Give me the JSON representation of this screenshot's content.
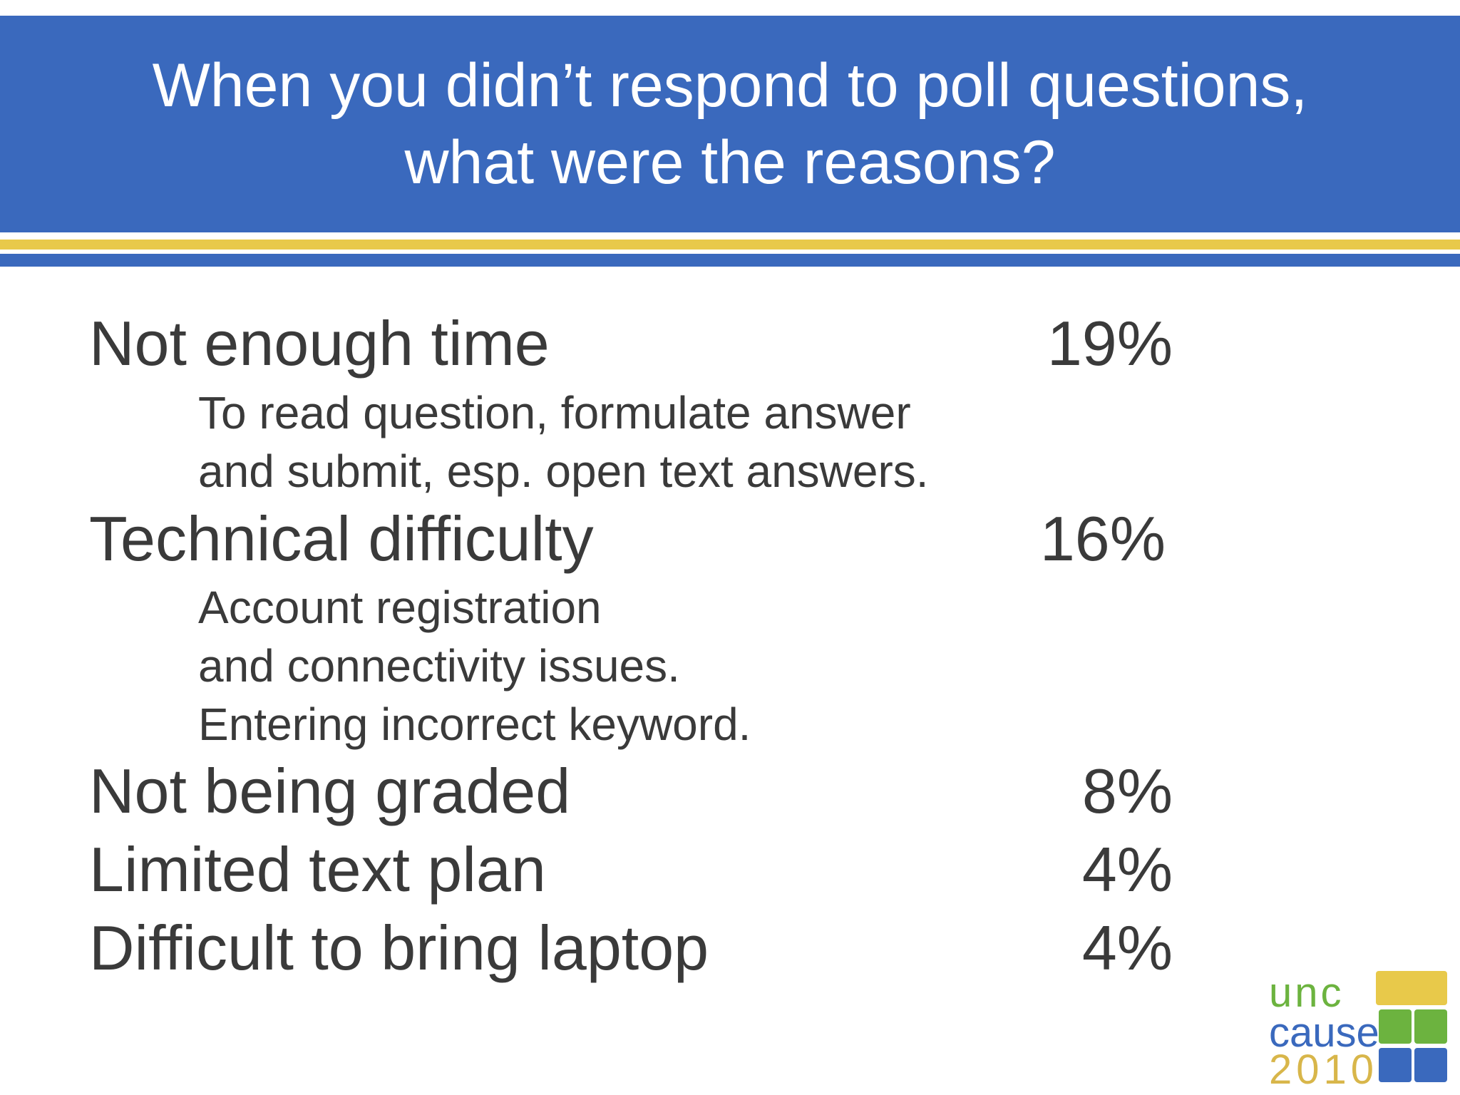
{
  "header": {
    "title_lines": [
      "When you didn’t respond to poll questions,",
      "what were the reasons?"
    ]
  },
  "reasons": [
    {
      "label": "Not enough time",
      "percent": "19%",
      "details": [
        "To read question, formulate answer",
        "and submit, esp. open text answers."
      ]
    },
    {
      "label": "Technical difficulty",
      "percent": "16%",
      "details": [
        "Account registration",
        "and connectivity issues.",
        "Entering incorrect keyword."
      ]
    },
    {
      "label": "Not being graded",
      "percent": "8%",
      "details": []
    },
    {
      "label": "Limited text plan",
      "percent": "4%",
      "details": []
    },
    {
      "label": "Difficult to bring laptop",
      "percent": "4%",
      "details": []
    }
  ],
  "logo": {
    "line1": "unc",
    "line2": "cause",
    "line3": "2010",
    "colors": {
      "yellow": "#e8c94a",
      "green": "#6cb33f",
      "blue": "#3a69bd",
      "line1_text": "#6cb33f",
      "line2_text": "#3a69bd",
      "line3_text": "#d8b64a"
    }
  },
  "colors": {
    "header_bg": "#3a69bd",
    "stripe": "#e8c94a",
    "text": "#3a3a3a"
  }
}
